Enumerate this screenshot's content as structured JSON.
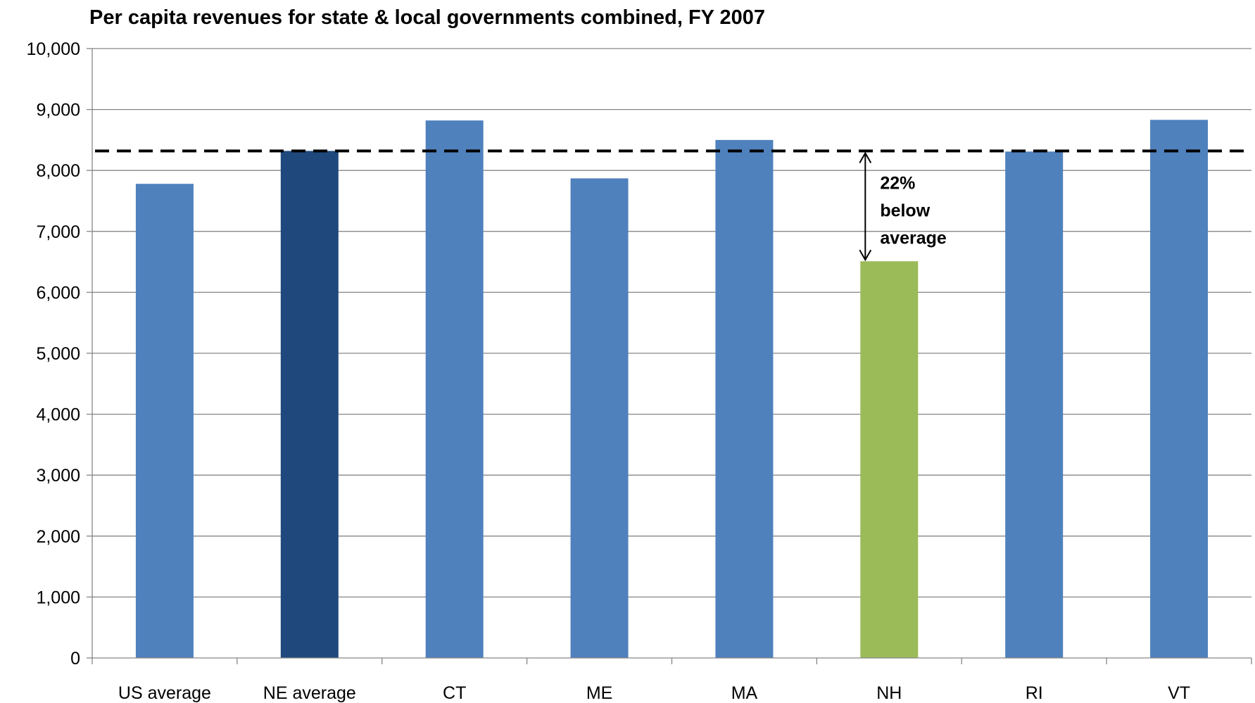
{
  "chart_data": {
    "type": "bar",
    "title": "Per capita revenues for state & local governments combined, FY 2007",
    "xlabel": "",
    "ylabel": "",
    "ylim": [
      0,
      10000
    ],
    "yticks": [
      0,
      1000,
      2000,
      3000,
      4000,
      5000,
      6000,
      7000,
      8000,
      9000,
      10000
    ],
    "ytick_labels": [
      "0",
      "1,000",
      "2,000",
      "3,000",
      "4,000",
      "5,000",
      "6,000",
      "7,000",
      "8,000",
      "9,000",
      "10,000"
    ],
    "grid": true,
    "categories": [
      "US average",
      "NE average",
      "CT",
      "ME",
      "MA",
      "NH",
      "RI",
      "VT"
    ],
    "values": [
      7780,
      8320,
      8820,
      7870,
      8500,
      6510,
      8310,
      8830
    ],
    "bar_colors": [
      "#4F81BD",
      "#1F497D",
      "#4F81BD",
      "#4F81BD",
      "#4F81BD",
      "#9BBB59",
      "#4F81BD",
      "#4F81BD"
    ],
    "reference_line": {
      "value": 8320,
      "style": "dashed",
      "color": "#000000"
    },
    "annotation": {
      "lines": [
        "22%",
        "below",
        "average"
      ],
      "category": "NH",
      "from_value": 8320,
      "to_value": 6510
    }
  }
}
